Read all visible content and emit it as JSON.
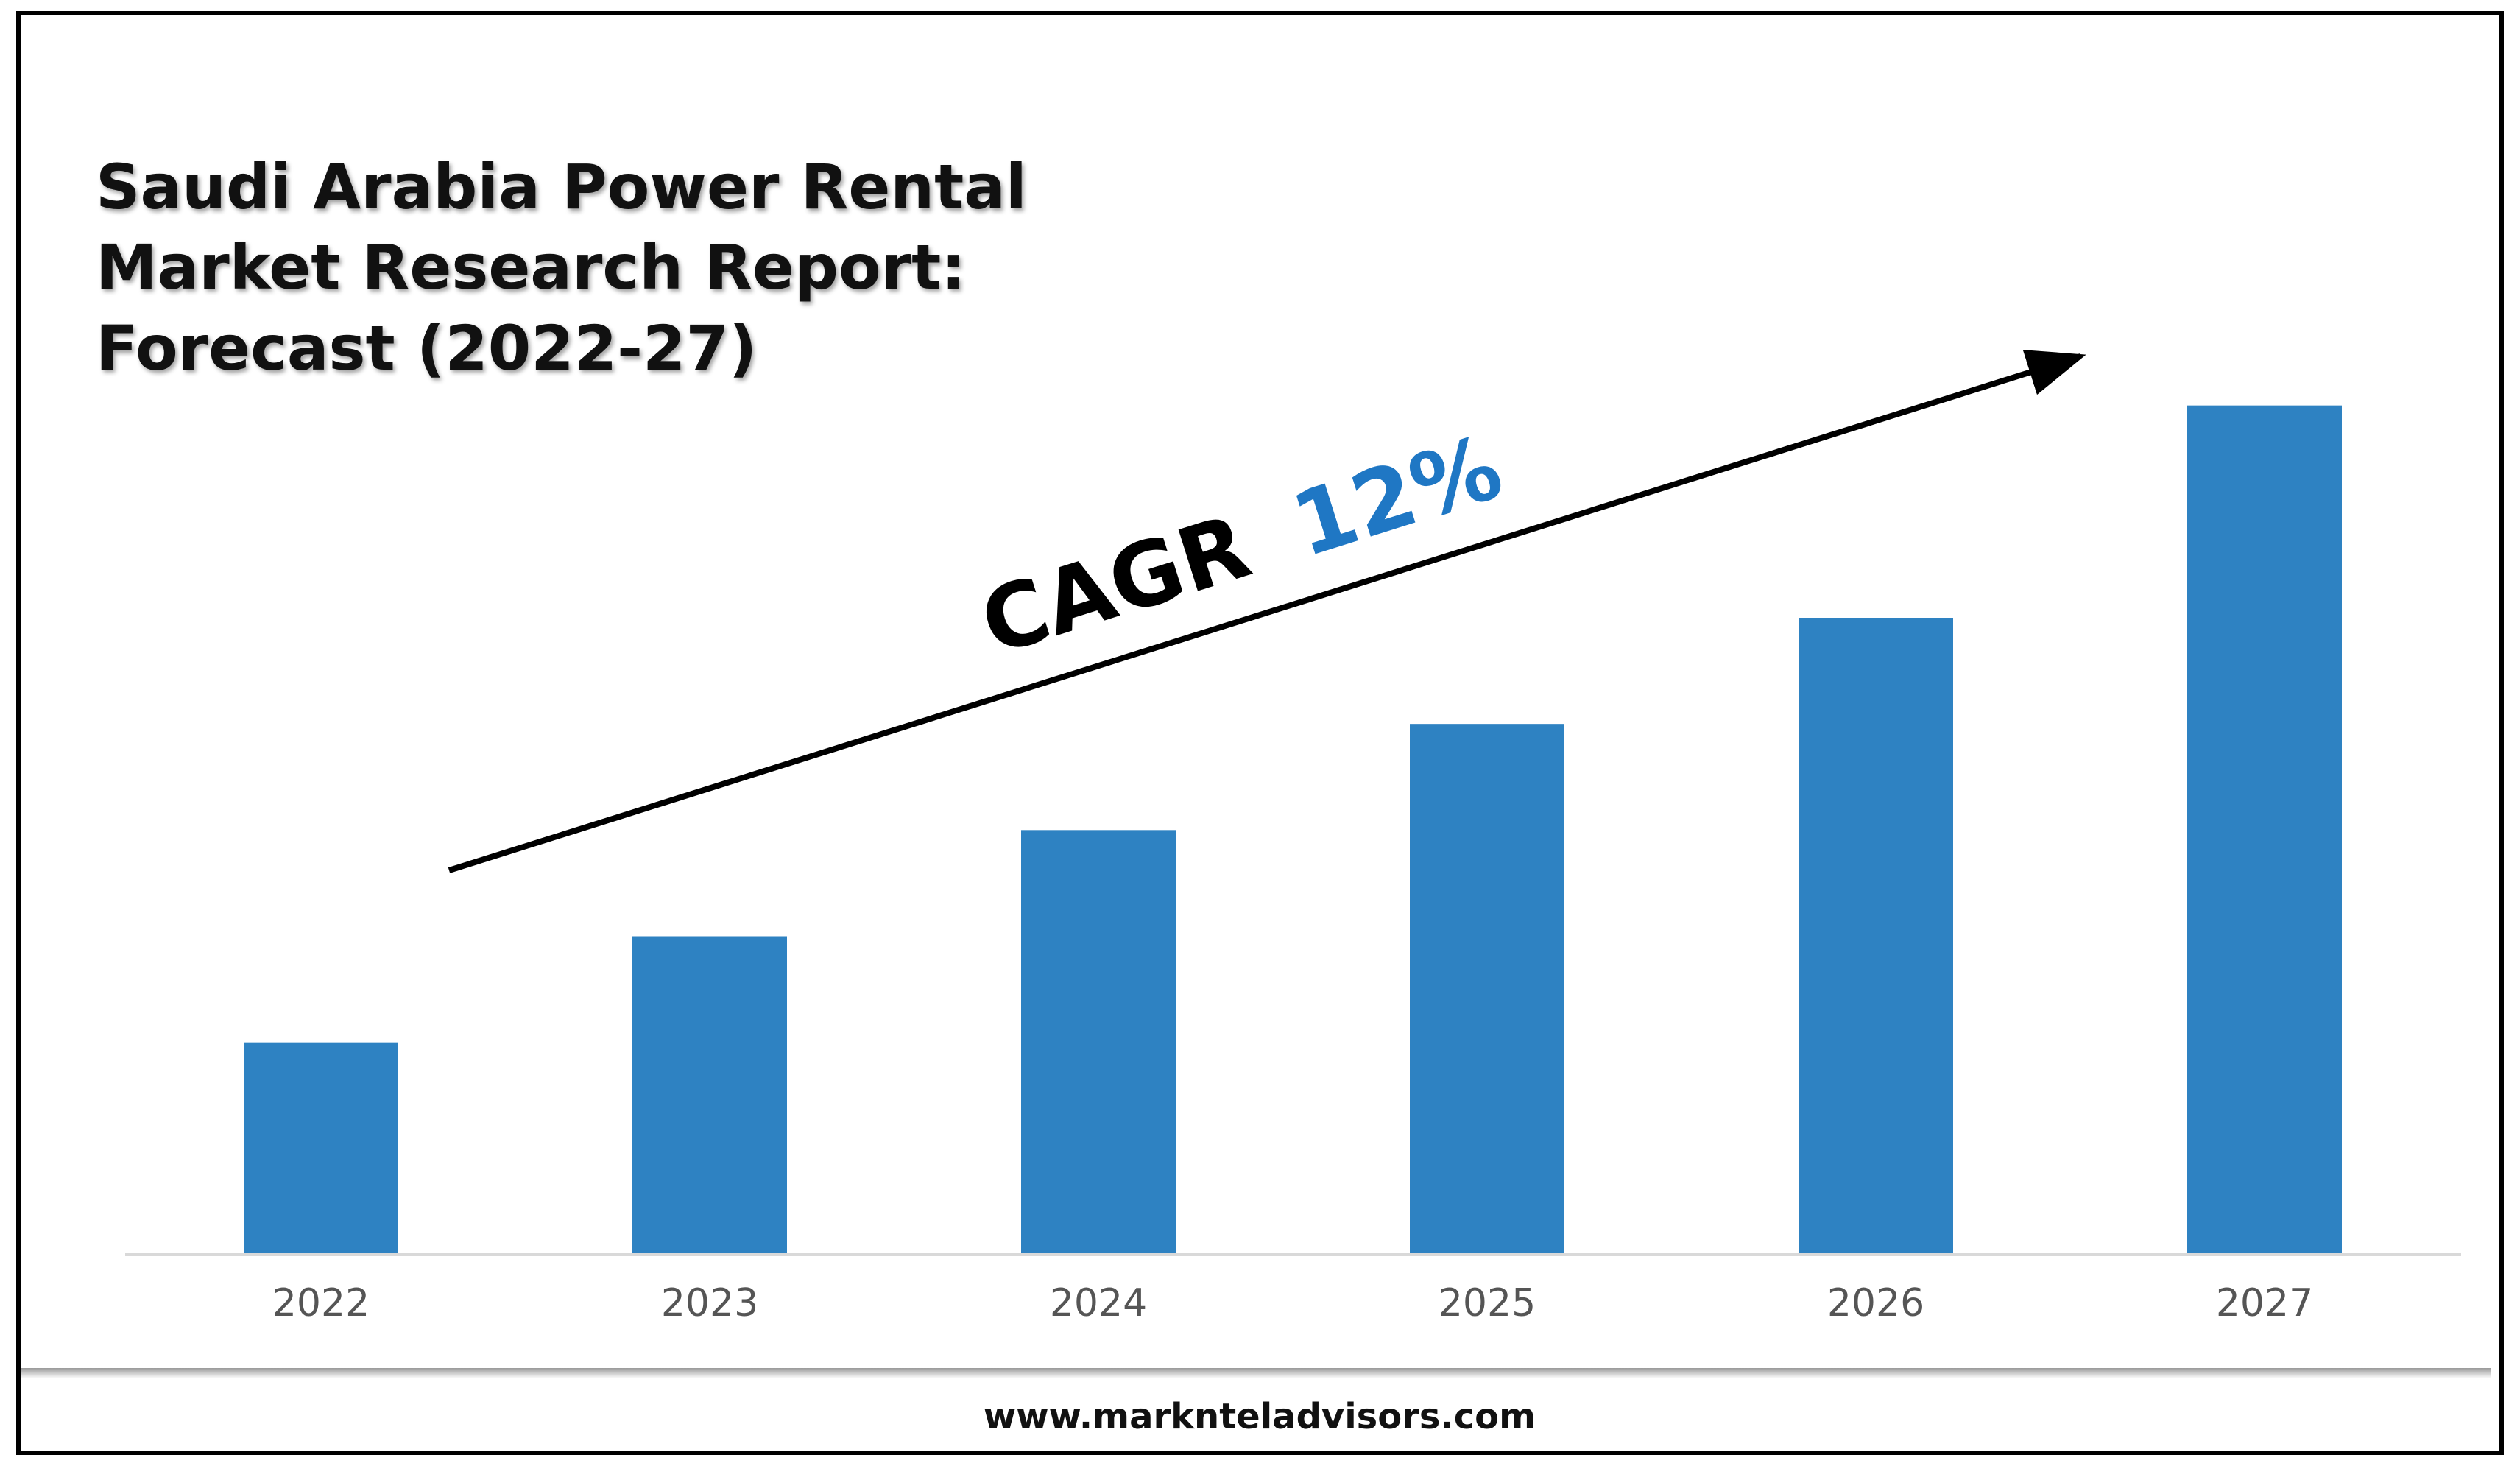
{
  "chart_data": {
    "type": "bar",
    "title_lines": [
      "Saudi Arabia Power Rental",
      "Market Research Report:",
      "Forecast (2022-27)"
    ],
    "categories": [
      "2022",
      "2023",
      "2024",
      "2025",
      "2026",
      "2027"
    ],
    "values": [
      1.0,
      1.5,
      2.0,
      2.5,
      3.0,
      4.0
    ],
    "ylim": [
      0,
      4.2
    ],
    "value_axis_visible": false,
    "grid": false,
    "legend": "none",
    "annotation": {
      "prefix": "CAGR",
      "value": "12%",
      "arrow": "rising trend arrow across bars"
    },
    "colors": {
      "bar": "#2E82C2",
      "cagr_value": "#1F77C4",
      "axis_line": "#D9D9D9",
      "footer_rule": "#A6A6A6"
    }
  },
  "footer": {
    "url": "www.marknteladvisors.com"
  }
}
